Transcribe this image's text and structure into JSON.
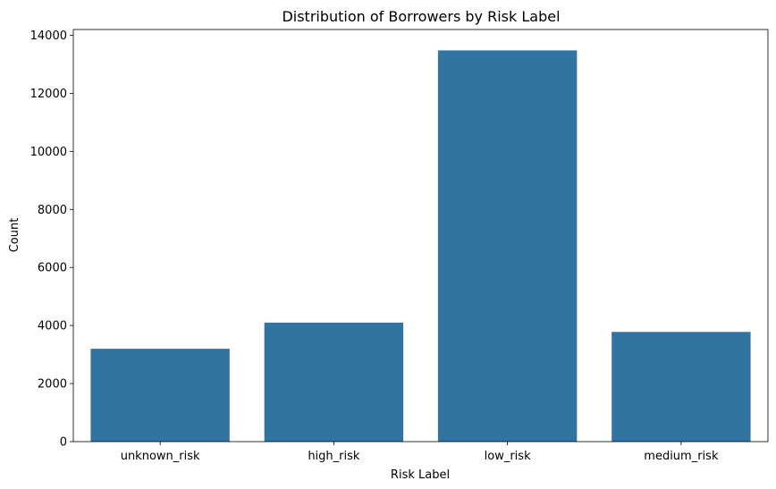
{
  "chart_data": {
    "type": "bar",
    "title": "Distribution of Borrowers by Risk Label",
    "xlabel": "Risk Label",
    "ylabel": "Count",
    "categories": [
      "unknown_risk",
      "high_risk",
      "low_risk",
      "medium_risk"
    ],
    "values": [
      3200,
      4100,
      13480,
      3780
    ],
    "ylim": [
      0,
      14200
    ],
    "yticks": [
      0,
      2000,
      4000,
      6000,
      8000,
      10000,
      12000,
      14000
    ],
    "bar_color": "#3274a1",
    "grid": false,
    "legend": "none"
  }
}
